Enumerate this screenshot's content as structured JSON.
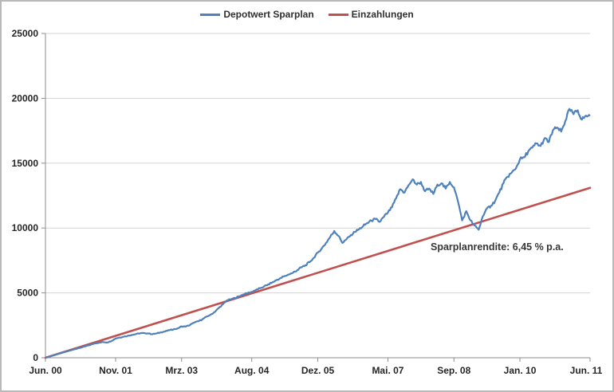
{
  "legend": {
    "series1_label": "Depotwert Sparplan",
    "series2_label": "Einzahlungen"
  },
  "annotation": {
    "text": "Sparplanrendite: 6,45 % p.a."
  },
  "colors": {
    "depotwert": "#4F81BD",
    "einzahlungen": "#C0504D",
    "gridline": "#D3D3D3",
    "axis": "#8E8E8E",
    "tick_text": "#262626"
  },
  "chart_data": {
    "type": "line",
    "title": "",
    "xlabel": "",
    "ylabel": "",
    "grid": "horizontal gridlines on",
    "legend_position": "top-center",
    "x_axis": {
      "unit": "months since Jun. 00",
      "range_months": [
        0,
        132
      ],
      "tick_labels": [
        "Jun. 00",
        "Nov. 01",
        "Mrz. 03",
        "Aug. 04",
        "Dez. 05",
        "Mai. 07",
        "Sep. 08",
        "Jan. 10",
        "Jun. 11"
      ],
      "tick_months": [
        0,
        17,
        33,
        50,
        66,
        83,
        99,
        115,
        132
      ]
    },
    "y_axis": {
      "range": [
        0,
        25000
      ],
      "ticks": [
        0,
        5000,
        10000,
        15000,
        20000,
        25000
      ]
    },
    "series": [
      {
        "name": "Depotwert Sparplan",
        "color": "#4F81BD",
        "x_start_month": 0,
        "x_step_months": 1,
        "values": [
          0,
          95,
          195,
          290,
          380,
          470,
          560,
          650,
          730,
          820,
          910,
          1010,
          1110,
          1160,
          1210,
          1180,
          1290,
          1490,
          1560,
          1620,
          1700,
          1760,
          1830,
          1890,
          1900,
          1870,
          1820,
          1880,
          1960,
          2030,
          2120,
          2180,
          2260,
          2420,
          2400,
          2520,
          2700,
          2810,
          2950,
          3160,
          3320,
          3520,
          3830,
          4120,
          4420,
          4520,
          4600,
          4740,
          4890,
          4980,
          5080,
          5230,
          5360,
          5500,
          5660,
          5810,
          5980,
          6140,
          6300,
          6420,
          6560,
          6740,
          6960,
          7130,
          7370,
          7700,
          8100,
          8450,
          8850,
          9300,
          9770,
          9400,
          8850,
          9150,
          9460,
          9700,
          9900,
          10150,
          10380,
          10560,
          10690,
          10480,
          10850,
          11200,
          11600,
          12300,
          13000,
          12730,
          13300,
          13755,
          13350,
          13550,
          12840,
          13040,
          12630,
          13345,
          13450,
          13040,
          13550,
          13140,
          12020,
          10590,
          11300,
          10590,
          10200,
          9870,
          10900,
          11500,
          11714,
          12100,
          12740,
          13450,
          13960,
          14270,
          14580,
          15300,
          15450,
          15900,
          16200,
          16520,
          16320,
          16930,
          16620,
          17540,
          17750,
          17440,
          18260,
          19180,
          18770,
          19080,
          18360,
          18670,
          18650
        ]
      },
      {
        "name": "Einzahlungen",
        "color": "#C0504D",
        "x_months": [
          0,
          132
        ],
        "values": [
          0,
          13100
        ]
      }
    ],
    "annotation": {
      "text": "Sparplanrendite: 6,45 % p.a.",
      "anchor_month": 108,
      "anchor_value": 8500
    }
  }
}
